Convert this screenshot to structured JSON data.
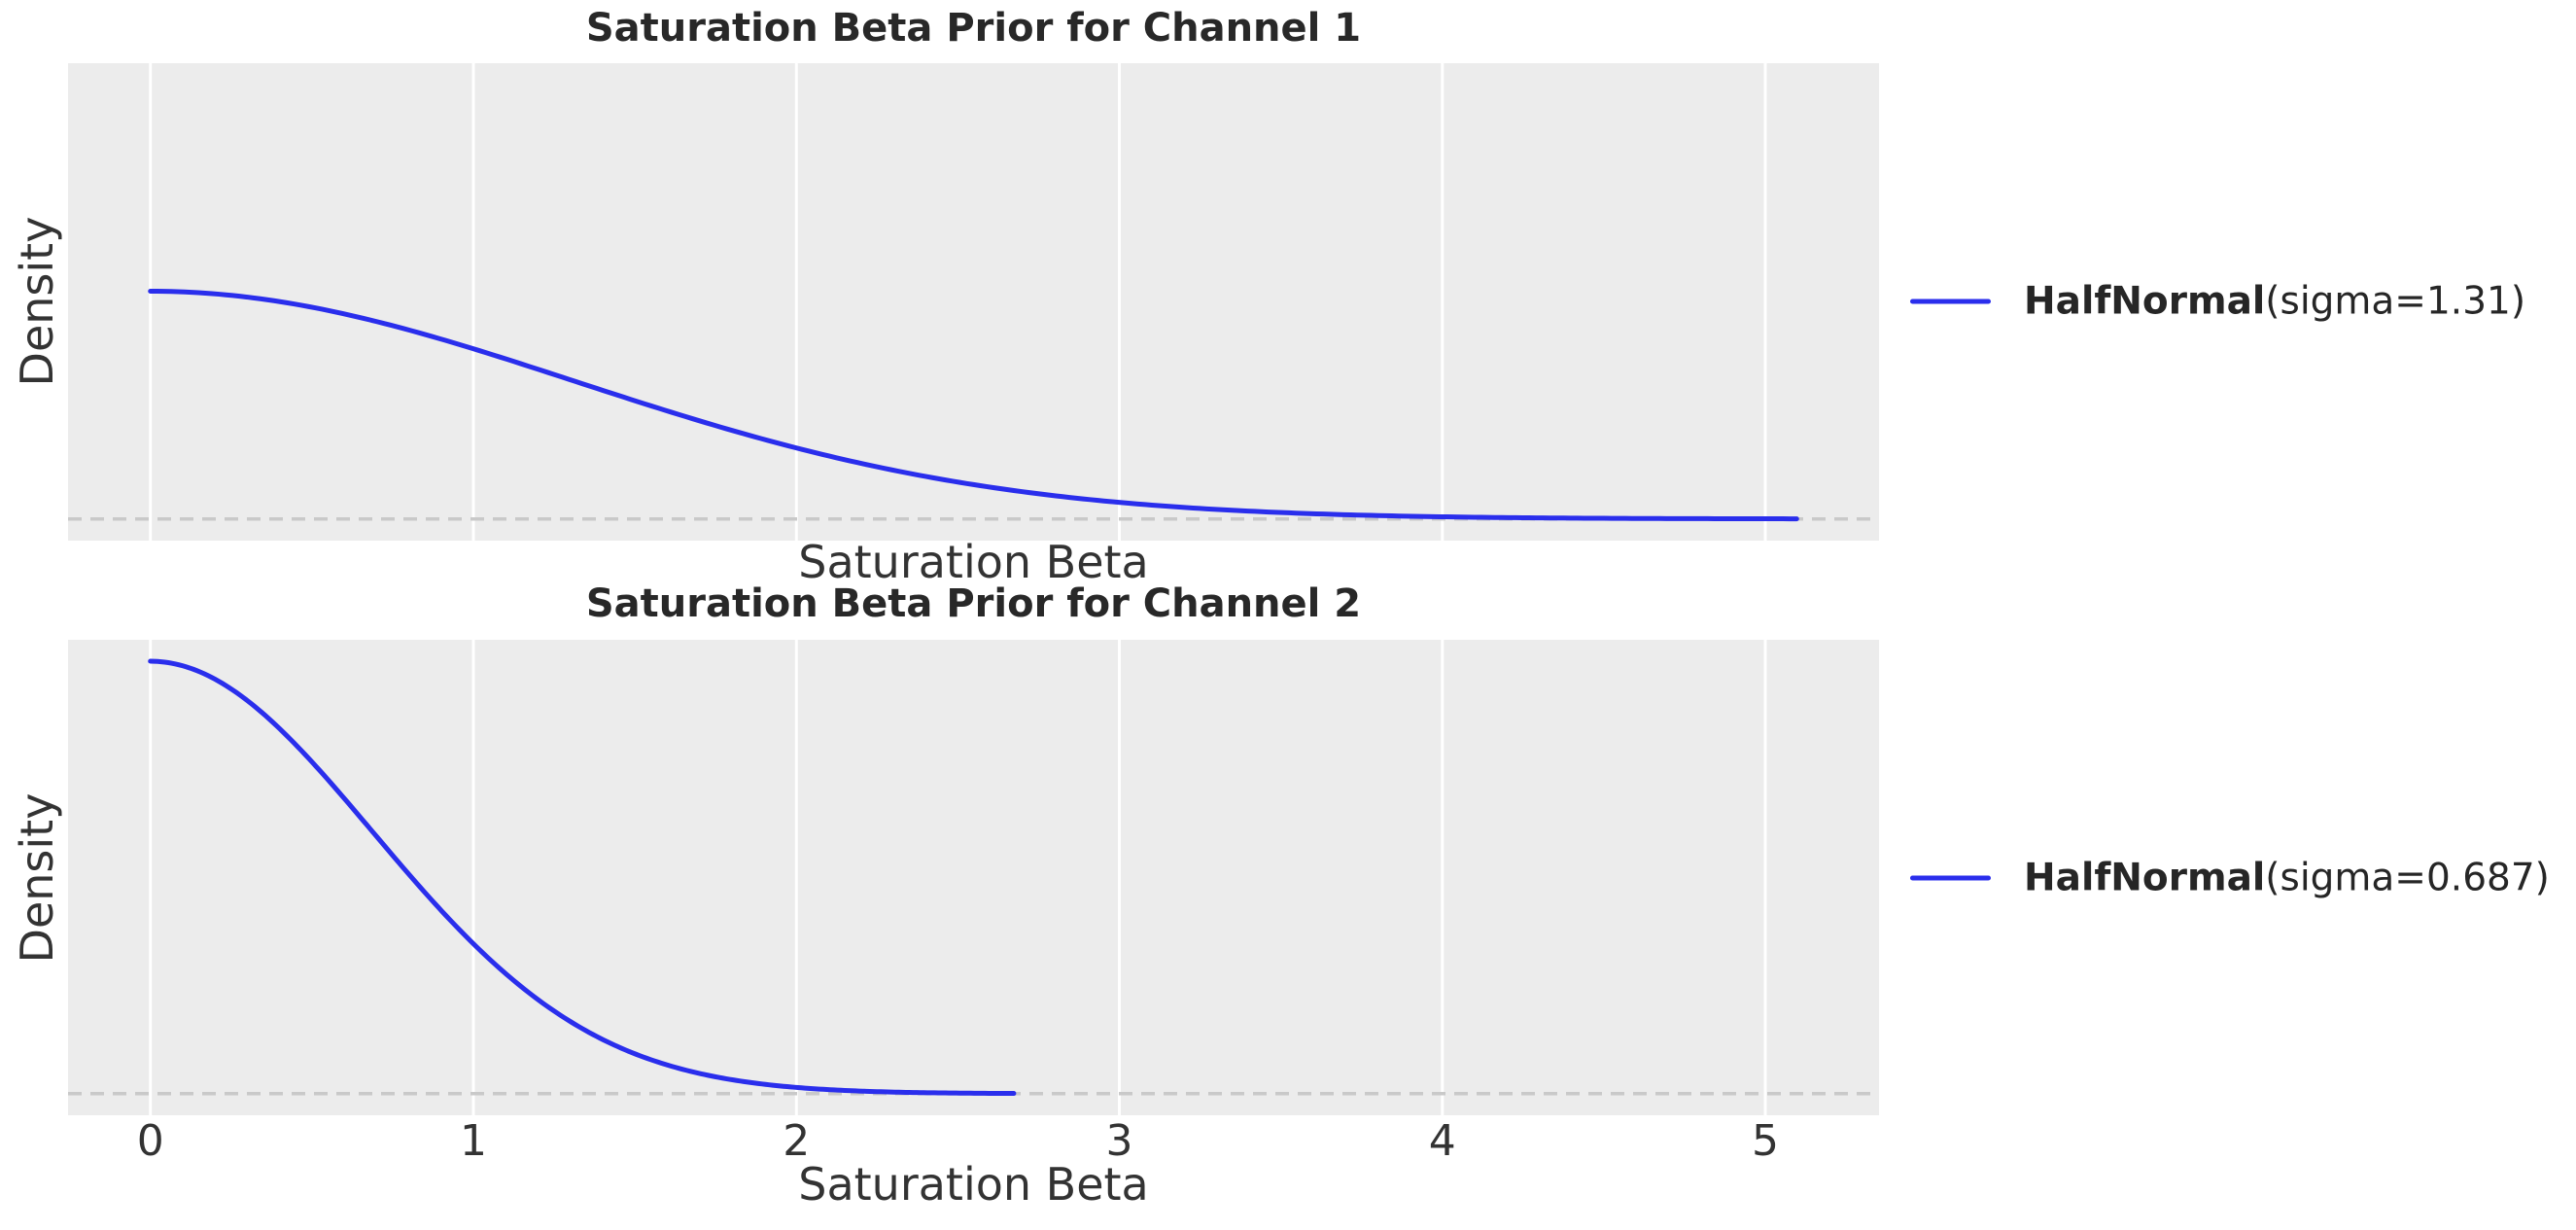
{
  "figure": {
    "background": "#ffffff"
  },
  "palette": {
    "axes_background": "#ececec",
    "grid_color": "#ffffff",
    "curve_color": "#2a2eec",
    "zero_line_color": "#c9c9c9",
    "title_color": "#282828",
    "label_color": "#333333"
  },
  "axis": {
    "x_label": "Saturation Beta",
    "y_label": "Density",
    "x_ticks": [
      0,
      1,
      2,
      3,
      4,
      5
    ],
    "xlim": [
      -0.255,
      5.352
    ],
    "ylim": [
      -0.058,
      1.219
    ],
    "grid": "vertical-only",
    "zero_reference_line": 0
  },
  "chart_data": [
    {
      "type": "line",
      "title": "Saturation Beta Prior for Channel 1",
      "xlabel": "Saturation Beta",
      "ylabel": "Density",
      "legend_dist": "HalfNormal",
      "legend_params": "(sigma=1.31)",
      "legend_position": "center right, outside axes",
      "distribution": "HalfNormal",
      "sigma": 1.31,
      "x_range": [
        0,
        5.097
      ],
      "peak_density": 0.609,
      "x": [
        0,
        0.5,
        1.0,
        1.5,
        2.0,
        2.5,
        3.0,
        3.5,
        4.0,
        4.5,
        5.0,
        5.097
      ],
      "density": [
        0.609,
        0.566,
        0.455,
        0.316,
        0.19,
        0.099,
        0.044,
        0.017,
        0.0058,
        0.0017,
        0.0004,
        0.0003
      ],
      "x_tick_labels_visible": false
    },
    {
      "type": "line",
      "title": "Saturation Beta Prior for Channel 2",
      "xlabel": "Saturation Beta",
      "ylabel": "Density",
      "legend_dist": "HalfNormal",
      "legend_params": "(sigma=0.687)",
      "legend_position": "center right, outside axes",
      "distribution": "HalfNormal",
      "sigma": 0.687,
      "x_range": [
        0,
        2.673
      ],
      "peak_density": 1.161,
      "x": [
        0,
        0.25,
        0.5,
        0.75,
        1.0,
        1.25,
        1.5,
        1.75,
        2.0,
        2.25,
        2.5,
        2.673
      ],
      "density": [
        1.161,
        1.087,
        0.891,
        0.64,
        0.403,
        0.222,
        0.107,
        0.045,
        0.017,
        0.0054,
        0.0015,
        0.0006
      ],
      "x_tick_labels_visible": true
    }
  ]
}
